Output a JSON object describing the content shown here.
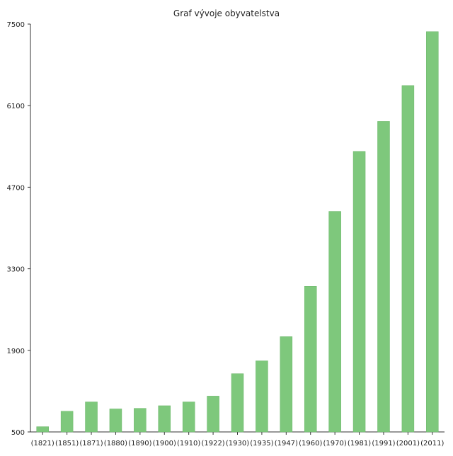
{
  "chart_data": {
    "type": "bar",
    "title": "Graf vývoje obyvatelstva",
    "xlabel": "",
    "ylabel": "",
    "ylim": [
      500,
      7500
    ],
    "yticks": [
      500,
      1900,
      3300,
      4700,
      6100,
      7500
    ],
    "categories": [
      "(1821)",
      "(1851)",
      "(1871)",
      "(1880)",
      "(1890)",
      "(1900)",
      "(1910)",
      "(1922)",
      "(1930)",
      "(1935)",
      "(1947)",
      "(1960)",
      "(1970)",
      "(1981)",
      "(1991)",
      "(2001)",
      "(2011)"
    ],
    "values": [
      590,
      855,
      1015,
      895,
      905,
      950,
      1015,
      1115,
      1500,
      1720,
      2135,
      3000,
      4285,
      5315,
      5830,
      6445,
      7370
    ],
    "bar_color": "#7ec87c",
    "bar_edge_color": "#6ab568",
    "grid": false
  }
}
